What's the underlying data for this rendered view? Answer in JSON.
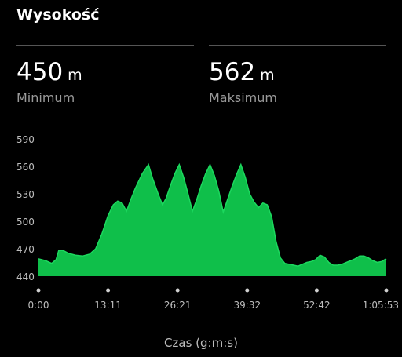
{
  "title": "Wysokość",
  "stats": {
    "min": {
      "value": "450",
      "unit": "m",
      "label": "Minimum"
    },
    "max": {
      "value": "562",
      "unit": "m",
      "label": "Maksimum"
    }
  },
  "colors": {
    "area": "#0fbf4a",
    "line": "#1cd85e",
    "tick_dot": "#d0d0d0",
    "axis_text": "#bdbdbd"
  },
  "chart_data": {
    "type": "area",
    "xlabel": "Czas (g:m:s)",
    "ylabel": "",
    "x_ticks": [
      "0:00",
      "13:11",
      "26:21",
      "39:32",
      "52:42",
      "1:05:53"
    ],
    "y_ticks": [
      440,
      470,
      500,
      530,
      560,
      590
    ],
    "xlim": [
      0,
      3953
    ],
    "ylim": [
      440,
      590
    ],
    "grid": false,
    "series": [
      {
        "values_x": [
          0,
          80,
          150,
          200,
          230,
          280,
          340,
          420,
          500,
          580,
          650,
          720,
          790,
          850,
          900,
          950,
          1000,
          1050,
          1100,
          1180,
          1250,
          1300,
          1360,
          1410,
          1450,
          1500,
          1550,
          1600,
          1650,
          1700,
          1750,
          1800,
          1850,
          1900,
          1950,
          2000,
          2050,
          2100,
          2150,
          2200,
          2250,
          2300,
          2350,
          2400,
          2450,
          2500,
          2550,
          2600,
          2650,
          2700,
          2750,
          2800,
          2850,
          2900,
          2950,
          3000,
          3050,
          3100,
          3150,
          3200,
          3250,
          3300,
          3350,
          3400,
          3450,
          3500,
          3550,
          3600,
          3650,
          3700,
          3750,
          3800,
          3850,
          3900,
          3953
        ],
        "values_y": [
          459,
          457,
          454,
          458,
          468,
          468,
          465,
          463,
          462,
          464,
          470,
          486,
          506,
          518,
          522,
          520,
          511,
          524,
          536,
          552,
          562,
          546,
          530,
          518,
          525,
          539,
          552,
          562,
          548,
          530,
          511,
          524,
          539,
          552,
          562,
          550,
          533,
          510,
          524,
          538,
          551,
          562,
          548,
          530,
          521,
          515,
          520,
          518,
          505,
          478,
          460,
          454,
          453,
          452,
          451,
          453,
          455,
          456,
          458,
          463,
          461,
          455,
          452,
          452,
          453,
          455,
          457,
          459,
          462,
          462,
          460,
          457,
          455,
          456,
          459
        ]
      }
    ]
  }
}
